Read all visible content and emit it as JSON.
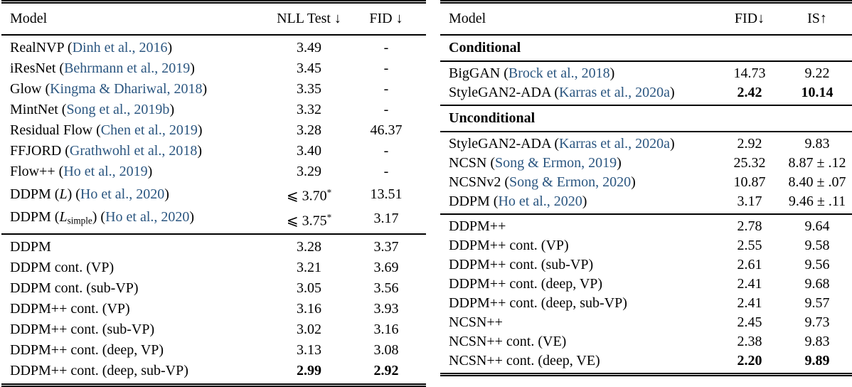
{
  "colors": {
    "citation": "#2b5680",
    "text": "#000000",
    "background": "#ffffff"
  },
  "tables": [
    {
      "key": "nll-fid",
      "columns": [
        {
          "key": "model",
          "label": "Model"
        },
        {
          "key": "nll-test",
          "label": "NLL Test ↓"
        },
        {
          "key": "fid",
          "label": "FID ↓"
        }
      ],
      "groups": [
        {
          "rows": [
            {
              "cells": [
                [
                  {
                    "t": "RealNVP ("
                  },
                  {
                    "t": "Dinh et al., 2016",
                    "k": "cite"
                  },
                  {
                    "t": ")"
                  }
                ],
                [
                  {
                    "t": "3.49"
                  }
                ],
                [
                  {
                    "t": "-"
                  }
                ]
              ]
            },
            {
              "cells": [
                [
                  {
                    "t": "iResNet ("
                  },
                  {
                    "t": "Behrmann et al., 2019",
                    "k": "cite"
                  },
                  {
                    "t": ")"
                  }
                ],
                [
                  {
                    "t": "3.45"
                  }
                ],
                [
                  {
                    "t": "-"
                  }
                ]
              ]
            },
            {
              "cells": [
                [
                  {
                    "t": "Glow ("
                  },
                  {
                    "t": "Kingma & Dhariwal, 2018",
                    "k": "cite"
                  },
                  {
                    "t": ")"
                  }
                ],
                [
                  {
                    "t": "3.35"
                  }
                ],
                [
                  {
                    "t": "-"
                  }
                ]
              ]
            },
            {
              "cells": [
                [
                  {
                    "t": "MintNet ("
                  },
                  {
                    "t": "Song et al., 2019b",
                    "k": "cite"
                  },
                  {
                    "t": ")"
                  }
                ],
                [
                  {
                    "t": "3.32"
                  }
                ],
                [
                  {
                    "t": "-"
                  }
                ]
              ]
            },
            {
              "cells": [
                [
                  {
                    "t": "Residual Flow ("
                  },
                  {
                    "t": "Chen et al., 2019",
                    "k": "cite"
                  },
                  {
                    "t": ")"
                  }
                ],
                [
                  {
                    "t": "3.28"
                  }
                ],
                [
                  {
                    "t": "46.37"
                  }
                ]
              ]
            },
            {
              "cells": [
                [
                  {
                    "t": "FFJORD ("
                  },
                  {
                    "t": "Grathwohl et al., 2018",
                    "k": "cite"
                  },
                  {
                    "t": ")"
                  }
                ],
                [
                  {
                    "t": "3.40"
                  }
                ],
                [
                  {
                    "t": "-"
                  }
                ]
              ]
            },
            {
              "cells": [
                [
                  {
                    "t": "Flow++ ("
                  },
                  {
                    "t": "Ho et al., 2019",
                    "k": "cite"
                  },
                  {
                    "t": ")"
                  }
                ],
                [
                  {
                    "t": "3.29"
                  }
                ],
                [
                  {
                    "t": "-"
                  }
                ]
              ]
            },
            {
              "cells": [
                [
                  {
                    "t": "DDPM ("
                  },
                  {
                    "t": "L",
                    "k": "it"
                  },
                  {
                    "t": ") ("
                  },
                  {
                    "t": "Ho et al., 2020",
                    "k": "cite"
                  },
                  {
                    "t": ")"
                  }
                ],
                [
                  {
                    "t": "⩽ 3.70"
                  },
                  {
                    "t": "*",
                    "k": "sup"
                  }
                ],
                [
                  {
                    "t": "13.51"
                  }
                ]
              ]
            },
            {
              "cells": [
                [
                  {
                    "t": "DDPM ("
                  },
                  {
                    "t": "L",
                    "k": "it"
                  },
                  {
                    "t": "simple",
                    "k": "sub"
                  },
                  {
                    "t": ") ("
                  },
                  {
                    "t": "Ho et al., 2020",
                    "k": "cite"
                  },
                  {
                    "t": ")"
                  }
                ],
                [
                  {
                    "t": "⩽ 3.75"
                  },
                  {
                    "t": "*",
                    "k": "sup"
                  }
                ],
                [
                  {
                    "t": "3.17"
                  }
                ]
              ]
            }
          ]
        },
        {
          "rows": [
            {
              "cells": [
                [
                  {
                    "t": "DDPM"
                  }
                ],
                [
                  {
                    "t": "3.28"
                  }
                ],
                [
                  {
                    "t": "3.37"
                  }
                ]
              ]
            },
            {
              "cells": [
                [
                  {
                    "t": "DDPM cont. (VP)"
                  }
                ],
                [
                  {
                    "t": "3.21"
                  }
                ],
                [
                  {
                    "t": "3.69"
                  }
                ]
              ]
            },
            {
              "cells": [
                [
                  {
                    "t": "DDPM cont. (sub-VP)"
                  }
                ],
                [
                  {
                    "t": "3.05"
                  }
                ],
                [
                  {
                    "t": "3.56"
                  }
                ]
              ]
            },
            {
              "cells": [
                [
                  {
                    "t": "DDPM++ cont. (VP)"
                  }
                ],
                [
                  {
                    "t": "3.16"
                  }
                ],
                [
                  {
                    "t": "3.93"
                  }
                ]
              ]
            },
            {
              "cells": [
                [
                  {
                    "t": "DDPM++ cont. (sub-VP)"
                  }
                ],
                [
                  {
                    "t": "3.02"
                  }
                ],
                [
                  {
                    "t": "3.16"
                  }
                ]
              ]
            },
            {
              "cells": [
                [
                  {
                    "t": "DDPM++ cont. (deep, VP)"
                  }
                ],
                [
                  {
                    "t": "3.13"
                  }
                ],
                [
                  {
                    "t": "3.08"
                  }
                ]
              ]
            },
            {
              "cells": [
                [
                  {
                    "t": "DDPM++ cont. (deep, sub-VP)"
                  }
                ],
                [
                  {
                    "t": "2.99",
                    "k": "bold"
                  }
                ],
                [
                  {
                    "t": "2.92",
                    "k": "bold"
                  }
                ]
              ]
            }
          ]
        }
      ]
    },
    {
      "key": "fid-is",
      "columns": [
        {
          "key": "model",
          "label": "Model"
        },
        {
          "key": "fid",
          "label": "FID↓"
        },
        {
          "key": "is",
          "label": "IS↑"
        }
      ],
      "groups": [
        {
          "header": "Conditional",
          "rows": [
            {
              "cells": [
                [
                  {
                    "t": "BigGAN ("
                  },
                  {
                    "t": "Brock et al., 2018",
                    "k": "cite"
                  },
                  {
                    "t": ")"
                  }
                ],
                [
                  {
                    "t": "14.73"
                  }
                ],
                [
                  {
                    "t": "9.22"
                  }
                ]
              ]
            },
            {
              "cells": [
                [
                  {
                    "t": "StyleGAN2-ADA ("
                  },
                  {
                    "t": "Karras et al., 2020a",
                    "k": "cite"
                  },
                  {
                    "t": ")"
                  }
                ],
                [
                  {
                    "t": "2.42",
                    "k": "bold"
                  }
                ],
                [
                  {
                    "t": "10.14",
                    "k": "bold"
                  }
                ]
              ]
            }
          ]
        },
        {
          "header": "Unconditional",
          "rows": [
            {
              "cells": [
                [
                  {
                    "t": "StyleGAN2-ADA ("
                  },
                  {
                    "t": "Karras et al., 2020a",
                    "k": "cite"
                  },
                  {
                    "t": ")"
                  }
                ],
                [
                  {
                    "t": "2.92"
                  }
                ],
                [
                  {
                    "t": "9.83"
                  }
                ]
              ]
            },
            {
              "cells": [
                [
                  {
                    "t": "NCSN ("
                  },
                  {
                    "t": "Song & Ermon, 2019",
                    "k": "cite"
                  },
                  {
                    "t": ")"
                  }
                ],
                [
                  {
                    "t": "25.32"
                  }
                ],
                [
                  {
                    "t": "8.87 ± .12"
                  }
                ]
              ]
            },
            {
              "cells": [
                [
                  {
                    "t": "NCSNv2 ("
                  },
                  {
                    "t": "Song & Ermon, 2020",
                    "k": "cite"
                  },
                  {
                    "t": ")"
                  }
                ],
                [
                  {
                    "t": "10.87"
                  }
                ],
                [
                  {
                    "t": "8.40 ± .07"
                  }
                ]
              ]
            },
            {
              "cells": [
                [
                  {
                    "t": "DDPM ("
                  },
                  {
                    "t": "Ho et al., 2020",
                    "k": "cite"
                  },
                  {
                    "t": ")"
                  }
                ],
                [
                  {
                    "t": "3.17"
                  }
                ],
                [
                  {
                    "t": "9.46 ± .11"
                  }
                ]
              ]
            }
          ]
        },
        {
          "rows": [
            {
              "cells": [
                [
                  {
                    "t": "DDPM++"
                  }
                ],
                [
                  {
                    "t": "2.78"
                  }
                ],
                [
                  {
                    "t": "9.64"
                  }
                ]
              ]
            },
            {
              "cells": [
                [
                  {
                    "t": "DDPM++ cont. (VP)"
                  }
                ],
                [
                  {
                    "t": "2.55"
                  }
                ],
                [
                  {
                    "t": "9.58"
                  }
                ]
              ]
            },
            {
              "cells": [
                [
                  {
                    "t": "DDPM++ cont. (sub-VP)"
                  }
                ],
                [
                  {
                    "t": "2.61"
                  }
                ],
                [
                  {
                    "t": "9.56"
                  }
                ]
              ]
            },
            {
              "cells": [
                [
                  {
                    "t": "DDPM++ cont. (deep, VP)"
                  }
                ],
                [
                  {
                    "t": "2.41"
                  }
                ],
                [
                  {
                    "t": "9.68"
                  }
                ]
              ]
            },
            {
              "cells": [
                [
                  {
                    "t": "DDPM++ cont. (deep, sub-VP)"
                  }
                ],
                [
                  {
                    "t": "2.41"
                  }
                ],
                [
                  {
                    "t": "9.57"
                  }
                ]
              ]
            },
            {
              "cells": [
                [
                  {
                    "t": "NCSN++"
                  }
                ],
                [
                  {
                    "t": "2.45"
                  }
                ],
                [
                  {
                    "t": "9.73"
                  }
                ]
              ]
            },
            {
              "cells": [
                [
                  {
                    "t": "NCSN++ cont. (VE)"
                  }
                ],
                [
                  {
                    "t": "2.38"
                  }
                ],
                [
                  {
                    "t": "9.83"
                  }
                ]
              ]
            },
            {
              "cells": [
                [
                  {
                    "t": "NCSN++ cont. (deep, VE)"
                  }
                ],
                [
                  {
                    "t": "2.20",
                    "k": "bold"
                  }
                ],
                [
                  {
                    "t": "9.89",
                    "k": "bold"
                  }
                ]
              ]
            }
          ]
        }
      ]
    }
  ]
}
